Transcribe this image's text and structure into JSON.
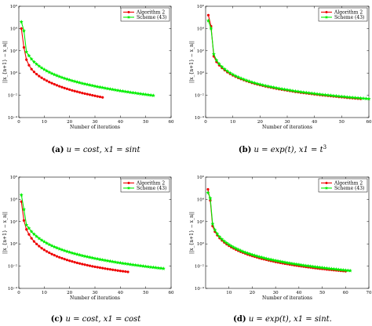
{
  "captions": [
    {
      "tag": "(a)",
      "text": "u = cost, x1 = sint"
    },
    {
      "tag": "(b)",
      "text": "u = exp(t), x1 = t3"
    },
    {
      "tag": "(c)",
      "text": "u = cost, x1 = cost"
    },
    {
      "tag": "(d)",
      "text": "u = exp(t), x1 = sint."
    }
  ],
  "chart_data": [
    {
      "type": "line",
      "panel": "a",
      "xlabel": "Number of iterations",
      "ylabel": "||x_{n+1} − x_n||",
      "xlim": [
        0,
        60
      ],
      "xticks": [
        0,
        10,
        20,
        30,
        40,
        50,
        60
      ],
      "ylim_log10": [
        -4,
        6
      ],
      "yticks_log10": [
        -4,
        -2,
        0,
        2,
        4,
        6
      ],
      "y_scale": "log",
      "legend_position": "top-right",
      "grid": false,
      "series": [
        {
          "name": "Algorithm 2",
          "color": "#ee0000",
          "marker": "circle",
          "x": [
            1,
            2,
            3,
            4,
            5,
            6,
            7,
            8,
            9,
            10,
            11,
            12,
            13,
            14,
            15,
            16,
            17,
            18,
            19,
            20,
            21,
            22,
            23,
            24,
            25,
            26,
            27,
            28,
            29,
            30,
            31,
            32,
            33
          ],
          "log10_y": [
            4.0,
            2.3,
            1.2,
            0.7,
            0.35,
            0.1,
            -0.1,
            -0.28,
            -0.43,
            -0.57,
            -0.69,
            -0.81,
            -0.91,
            -1.01,
            -1.1,
            -1.19,
            -1.27,
            -1.35,
            -1.42,
            -1.49,
            -1.56,
            -1.62,
            -1.68,
            -1.74,
            -1.8,
            -1.85,
            -1.9,
            -1.95,
            -2.0,
            -2.05,
            -2.1,
            -2.14,
            -2.19
          ]
        },
        {
          "name": "Scheme (43)",
          "color": "#00ee00",
          "marker": "star",
          "x": [
            1,
            2,
            3,
            4,
            5,
            6,
            7,
            8,
            9,
            10,
            11,
            12,
            13,
            14,
            15,
            16,
            17,
            18,
            19,
            20,
            21,
            22,
            23,
            24,
            25,
            26,
            27,
            28,
            29,
            30,
            31,
            32,
            33,
            34,
            35,
            36,
            37,
            38,
            39,
            40,
            41,
            42,
            43,
            44,
            45,
            46,
            47,
            48,
            49,
            50,
            51,
            52,
            53
          ],
          "log10_y": [
            4.6,
            3.8,
            1.9,
            1.55,
            1.25,
            1.0,
            0.8,
            0.62,
            0.46,
            0.32,
            0.19,
            0.07,
            -0.04,
            -0.14,
            -0.23,
            -0.32,
            -0.4,
            -0.48,
            -0.55,
            -0.62,
            -0.69,
            -0.75,
            -0.81,
            -0.87,
            -0.93,
            -0.98,
            -1.03,
            -1.08,
            -1.13,
            -1.18,
            -1.23,
            -1.27,
            -1.31,
            -1.36,
            -1.4,
            -1.44,
            -1.48,
            -1.52,
            -1.56,
            -1.6,
            -1.63,
            -1.67,
            -1.7,
            -1.74,
            -1.77,
            -1.8,
            -1.84,
            -1.87,
            -1.9,
            -1.93,
            -1.96,
            -1.99,
            -2.02
          ]
        }
      ]
    },
    {
      "type": "line",
      "panel": "b",
      "xlabel": "Number of iterations",
      "ylabel": "||x_{n+1} − x_n||",
      "xlim": [
        0,
        60
      ],
      "xticks": [
        0,
        10,
        20,
        30,
        40,
        50,
        60
      ],
      "ylim_log10": [
        -4,
        6
      ],
      "yticks_log10": [
        -4,
        -2,
        0,
        2,
        4,
        6
      ],
      "y_scale": "log",
      "legend_position": "top-right",
      "grid": false,
      "series": [
        {
          "name": "Algorithm 2",
          "color": "#ee0000",
          "marker": "circle",
          "x": [
            1,
            2,
            3,
            4,
            5,
            6,
            7,
            8,
            9,
            10,
            11,
            12,
            13,
            14,
            15,
            16,
            17,
            18,
            19,
            20,
            21,
            22,
            23,
            24,
            25,
            26,
            27,
            28,
            29,
            30,
            31,
            32,
            33,
            34,
            35,
            36,
            37,
            38,
            39,
            40,
            41,
            42,
            43,
            44,
            45,
            46,
            47,
            48,
            49,
            50,
            51,
            52,
            53,
            54,
            55,
            56,
            57
          ],
          "log10_y": [
            5.2,
            4.2,
            1.5,
            1.0,
            0.7,
            0.46,
            0.26,
            0.08,
            -0.07,
            -0.21,
            -0.33,
            -0.44,
            -0.54,
            -0.63,
            -0.72,
            -0.8,
            -0.88,
            -0.95,
            -1.02,
            -1.08,
            -1.14,
            -1.2,
            -1.25,
            -1.3,
            -1.35,
            -1.4,
            -1.45,
            -1.49,
            -1.53,
            -1.57,
            -1.61,
            -1.65,
            -1.69,
            -1.72,
            -1.76,
            -1.79,
            -1.82,
            -1.85,
            -1.88,
            -1.91,
            -1.94,
            -1.97,
            -2.0,
            -2.02,
            -2.05,
            -2.07,
            -2.1,
            -2.12,
            -2.15,
            -2.17,
            -2.19,
            -2.22,
            -2.24,
            -2.26,
            -2.28,
            -2.3,
            -2.32
          ]
        },
        {
          "name": "Scheme (43)",
          "color": "#00ee00",
          "marker": "star",
          "x": [
            1,
            2,
            3,
            4,
            5,
            6,
            7,
            8,
            9,
            10,
            11,
            12,
            13,
            14,
            15,
            16,
            17,
            18,
            19,
            20,
            21,
            22,
            23,
            24,
            25,
            26,
            27,
            28,
            29,
            30,
            31,
            32,
            33,
            34,
            35,
            36,
            37,
            38,
            39,
            40,
            41,
            42,
            43,
            44,
            45,
            46,
            47,
            48,
            49,
            50,
            51,
            52,
            53,
            54,
            55,
            56,
            57,
            58,
            59,
            60
          ],
          "log10_y": [
            4.7,
            4.0,
            1.7,
            1.15,
            0.82,
            0.56,
            0.35,
            0.17,
            0.01,
            -0.13,
            -0.26,
            -0.37,
            -0.47,
            -0.57,
            -0.66,
            -0.74,
            -0.82,
            -0.89,
            -0.96,
            -1.02,
            -1.08,
            -1.14,
            -1.19,
            -1.24,
            -1.29,
            -1.34,
            -1.39,
            -1.43,
            -1.47,
            -1.51,
            -1.55,
            -1.59,
            -1.63,
            -1.66,
            -1.7,
            -1.73,
            -1.76,
            -1.79,
            -1.82,
            -1.85,
            -1.88,
            -1.91,
            -1.94,
            -1.96,
            -1.99,
            -2.01,
            -2.04,
            -2.06,
            -2.09,
            -2.11,
            -2.13,
            -2.16,
            -2.18,
            -2.2,
            -2.22,
            -2.24,
            -2.26,
            -2.28,
            -2.3,
            -2.32
          ]
        }
      ]
    },
    {
      "type": "line",
      "panel": "c",
      "xlabel": "Number of iterations",
      "ylabel": "||x_{n+1} − x_n||",
      "xlim": [
        0,
        60
      ],
      "xticks": [
        0,
        10,
        20,
        30,
        40,
        50,
        60
      ],
      "ylim_log10": [
        -4,
        6
      ],
      "yticks_log10": [
        -4,
        -2,
        0,
        2,
        4,
        6
      ],
      "y_scale": "log",
      "legend_position": "top-right",
      "grid": false,
      "series": [
        {
          "name": "Algorithm 2",
          "color": "#ee0000",
          "marker": "circle",
          "x": [
            1,
            2,
            3,
            4,
            5,
            6,
            7,
            8,
            9,
            10,
            11,
            12,
            13,
            14,
            15,
            16,
            17,
            18,
            19,
            20,
            21,
            22,
            23,
            24,
            25,
            26,
            27,
            28,
            29,
            30,
            31,
            32,
            33,
            34,
            35,
            36,
            37,
            38,
            39,
            40,
            41,
            42,
            43
          ],
          "log10_y": [
            3.8,
            2.1,
            1.3,
            0.85,
            0.5,
            0.22,
            -0.01,
            -0.21,
            -0.39,
            -0.54,
            -0.68,
            -0.8,
            -0.92,
            -1.02,
            -1.12,
            -1.21,
            -1.29,
            -1.37,
            -1.45,
            -1.52,
            -1.58,
            -1.65,
            -1.71,
            -1.76,
            -1.82,
            -1.87,
            -1.92,
            -1.97,
            -2.02,
            -2.06,
            -2.1,
            -2.14,
            -2.18,
            -2.22,
            -2.26,
            -2.29,
            -2.33,
            -2.36,
            -2.4,
            -2.43,
            -2.46,
            -2.49,
            -2.52
          ]
        },
        {
          "name": "Scheme (43)",
          "color": "#00ee00",
          "marker": "star",
          "x": [
            1,
            2,
            3,
            4,
            5,
            6,
            7,
            8,
            9,
            10,
            11,
            12,
            13,
            14,
            15,
            16,
            17,
            18,
            19,
            20,
            21,
            22,
            23,
            24,
            25,
            26,
            27,
            28,
            29,
            30,
            31,
            32,
            33,
            34,
            35,
            36,
            37,
            38,
            39,
            40,
            41,
            42,
            43,
            44,
            45,
            46,
            47,
            48,
            49,
            50,
            51,
            52,
            53,
            54,
            55,
            56,
            57
          ],
          "log10_y": [
            4.4,
            3.1,
            1.7,
            1.4,
            1.1,
            0.87,
            0.67,
            0.49,
            0.33,
            0.19,
            0.06,
            -0.06,
            -0.17,
            -0.27,
            -0.36,
            -0.45,
            -0.53,
            -0.61,
            -0.68,
            -0.75,
            -0.82,
            -0.88,
            -0.94,
            -1.0,
            -1.06,
            -1.11,
            -1.16,
            -1.21,
            -1.26,
            -1.31,
            -1.35,
            -1.4,
            -1.44,
            -1.48,
            -1.52,
            -1.56,
            -1.6,
            -1.64,
            -1.68,
            -1.71,
            -1.75,
            -1.78,
            -1.81,
            -1.85,
            -1.88,
            -1.91,
            -1.94,
            -1.97,
            -2.0,
            -2.03,
            -2.06,
            -2.09,
            -2.11,
            -2.14,
            -2.17,
            -2.19,
            -2.22
          ]
        }
      ]
    },
    {
      "type": "line",
      "panel": "d",
      "xlabel": "Number of iterations",
      "ylabel": "||x_{n+1} − x_n||",
      "xlim": [
        0,
        70
      ],
      "xticks": [
        10,
        20,
        30,
        40,
        50,
        60,
        70
      ],
      "ylim_log10": [
        -4,
        6
      ],
      "yticks_log10": [
        -4,
        -2,
        0,
        2,
        4,
        6
      ],
      "y_scale": "log",
      "legend_position": "top-right",
      "grid": false,
      "series": [
        {
          "name": "Algorithm 2",
          "color": "#ee0000",
          "marker": "circle",
          "x": [
            1,
            2,
            3,
            4,
            5,
            6,
            7,
            8,
            9,
            10,
            11,
            12,
            13,
            14,
            15,
            16,
            17,
            18,
            19,
            20,
            21,
            22,
            23,
            24,
            25,
            26,
            27,
            28,
            29,
            30,
            31,
            32,
            33,
            34,
            35,
            36,
            37,
            38,
            39,
            40,
            41,
            42,
            43,
            44,
            45,
            46,
            47,
            48,
            49,
            50,
            51,
            52,
            53,
            54,
            55,
            56,
            57,
            58,
            59,
            60
          ],
          "log10_y": [
            4.9,
            3.9,
            1.6,
            1.1,
            0.78,
            0.52,
            0.31,
            0.13,
            -0.03,
            -0.17,
            -0.3,
            -0.41,
            -0.52,
            -0.62,
            -0.71,
            -0.79,
            -0.87,
            -0.95,
            -1.02,
            -1.09,
            -1.15,
            -1.21,
            -1.27,
            -1.33,
            -1.38,
            -1.43,
            -1.48,
            -1.53,
            -1.57,
            -1.62,
            -1.66,
            -1.7,
            -1.74,
            -1.78,
            -1.81,
            -1.85,
            -1.88,
            -1.92,
            -1.95,
            -1.98,
            -2.01,
            -2.04,
            -2.07,
            -2.1,
            -2.12,
            -2.15,
            -2.18,
            -2.2,
            -2.23,
            -2.25,
            -2.27,
            -2.3,
            -2.32,
            -2.34,
            -2.36,
            -2.38,
            -2.4,
            -2.42,
            -2.44,
            -2.46
          ]
        },
        {
          "name": "Scheme (43)",
          "color": "#00ee00",
          "marker": "star",
          "x": [
            1,
            2,
            3,
            4,
            5,
            6,
            7,
            8,
            9,
            10,
            11,
            12,
            13,
            14,
            15,
            16,
            17,
            18,
            19,
            20,
            21,
            22,
            23,
            24,
            25,
            26,
            27,
            28,
            29,
            30,
            31,
            32,
            33,
            34,
            35,
            36,
            37,
            38,
            39,
            40,
            41,
            42,
            43,
            44,
            45,
            46,
            47,
            48,
            49,
            50,
            51,
            52,
            53,
            54,
            55,
            56,
            57,
            58,
            59,
            60,
            61,
            62
          ],
          "log10_y": [
            4.6,
            4.1,
            1.8,
            1.25,
            0.9,
            0.63,
            0.42,
            0.24,
            0.08,
            -0.06,
            -0.19,
            -0.31,
            -0.41,
            -0.51,
            -0.6,
            -0.69,
            -0.77,
            -0.84,
            -0.91,
            -0.98,
            -1.04,
            -1.1,
            -1.16,
            -1.21,
            -1.27,
            -1.32,
            -1.37,
            -1.41,
            -1.46,
            -1.5,
            -1.54,
            -1.58,
            -1.62,
            -1.66,
            -1.7,
            -1.73,
            -1.77,
            -1.8,
            -1.83,
            -1.86,
            -1.9,
            -1.93,
            -1.96,
            -1.98,
            -2.01,
            -2.04,
            -2.07,
            -2.09,
            -2.12,
            -2.14,
            -2.17,
            -2.19,
            -2.22,
            -2.24,
            -2.26,
            -2.28,
            -2.31,
            -2.33,
            -2.35,
            -2.37,
            -2.39,
            -2.41
          ]
        }
      ]
    }
  ]
}
